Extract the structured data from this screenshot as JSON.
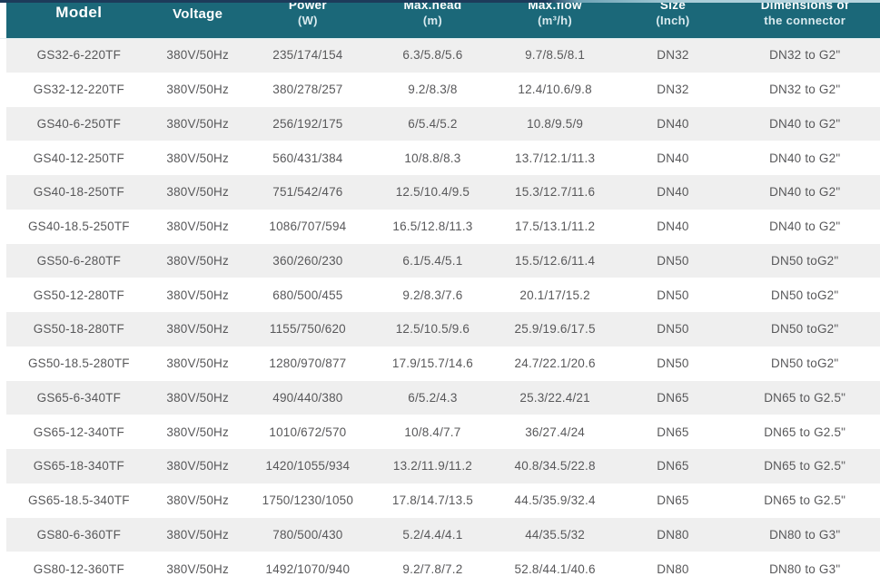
{
  "table": {
    "columns": [
      {
        "line1": "Model",
        "line2": ""
      },
      {
        "line1": "Voltage",
        "line2": ""
      },
      {
        "line1": "Power",
        "line2": "(W)"
      },
      {
        "line1": "Max.head",
        "line2": "(m)"
      },
      {
        "line1": "Max.flow",
        "line2": "(m³/h)"
      },
      {
        "line1": "Size",
        "line2": "(Inch)"
      },
      {
        "line1": "Dimensions of",
        "line2": "the connector"
      }
    ],
    "rows": [
      [
        "GS32-6-220TF",
        "380V/50Hz",
        "235/174/154",
        "6.3/5.8/5.6",
        "9.7/8.5/8.1",
        "DN32",
        "DN32 to G2\""
      ],
      [
        "GS32-12-220TF",
        "380V/50Hz",
        "380/278/257",
        "9.2/8.3/8",
        "12.4/10.6/9.8",
        "DN32",
        "DN32 to G2\""
      ],
      [
        "GS40-6-250TF",
        "380V/50Hz",
        "256/192/175",
        "6/5.4/5.2",
        "10.8/9.5/9",
        "DN40",
        "DN40 to G2\""
      ],
      [
        "GS40-12-250TF",
        "380V/50Hz",
        "560/431/384",
        "10/8.8/8.3",
        "13.7/12.1/11.3",
        "DN40",
        "DN40 to G2\""
      ],
      [
        "GS40-18-250TF",
        "380V/50Hz",
        "751/542/476",
        "12.5/10.4/9.5",
        "15.3/12.7/11.6",
        "DN40",
        "DN40 to G2\""
      ],
      [
        "GS40-18.5-250TF",
        "380V/50Hz",
        "1086/707/594",
        "16.5/12.8/11.3",
        "17.5/13.1/11.2",
        "DN40",
        "DN40 to G2\""
      ],
      [
        "GS50-6-280TF",
        "380V/50Hz",
        "360/260/230",
        "6.1/5.4/5.1",
        "15.5/12.6/11.4",
        "DN50",
        "DN50 toG2\""
      ],
      [
        "GS50-12-280TF",
        "380V/50Hz",
        "680/500/455",
        "9.2/8.3/7.6",
        "20.1/17/15.2",
        "DN50",
        "DN50 toG2\""
      ],
      [
        "GS50-18-280TF",
        "380V/50Hz",
        "1155/750/620",
        "12.5/10.5/9.6",
        "25.9/19.6/17.5",
        "DN50",
        "DN50 toG2\""
      ],
      [
        "GS50-18.5-280TF",
        "380V/50Hz",
        "1280/970/877",
        "17.9/15.7/14.6",
        "24.7/22.1/20.6",
        "DN50",
        "DN50 toG2\""
      ],
      [
        "GS65-6-340TF",
        "380V/50Hz",
        "490/440/380",
        "6/5.2/4.3",
        "25.3/22.4/21",
        "DN65",
        "DN65 to G2.5\""
      ],
      [
        "GS65-12-340TF",
        "380V/50Hz",
        "1010/672/570",
        "10/8.4/7.7",
        "36/27.4/24",
        "DN65",
        "DN65 to G2.5\""
      ],
      [
        "GS65-18-340TF",
        "380V/50Hz",
        "1420/1055/934",
        "13.2/11.9/11.2",
        "40.8/34.5/22.8",
        "DN65",
        "DN65 to G2.5\""
      ],
      [
        "GS65-18.5-340TF",
        "380V/50Hz",
        "1750/1230/1050",
        "17.8/14.7/13.5",
        "44.5/35.9/32.4",
        "DN65",
        "DN65 to G2.5\""
      ],
      [
        "GS80-6-360TF",
        "380V/50Hz",
        "780/500/430",
        "5.2/4.4/4.1",
        "44/35.5/32",
        "DN80",
        "DN80 to G3\""
      ],
      [
        "GS80-12-360TF",
        "380V/50Hz",
        "1492/1070/940",
        "9.2/7.8/7.2",
        "52.8/44.1/40.6",
        "DN80",
        "DN80 to G3\""
      ]
    ],
    "colors": {
      "header_bg": "#1b6879",
      "header_text": "#ffffff",
      "header_subtext": "#d9eaef",
      "row_alt_bg": "#efefef",
      "row_bg": "#ffffff",
      "row_text": "#58585a",
      "top_strip_dark": "#1d3b5a",
      "top_strip_light": "#b9d6df"
    }
  }
}
